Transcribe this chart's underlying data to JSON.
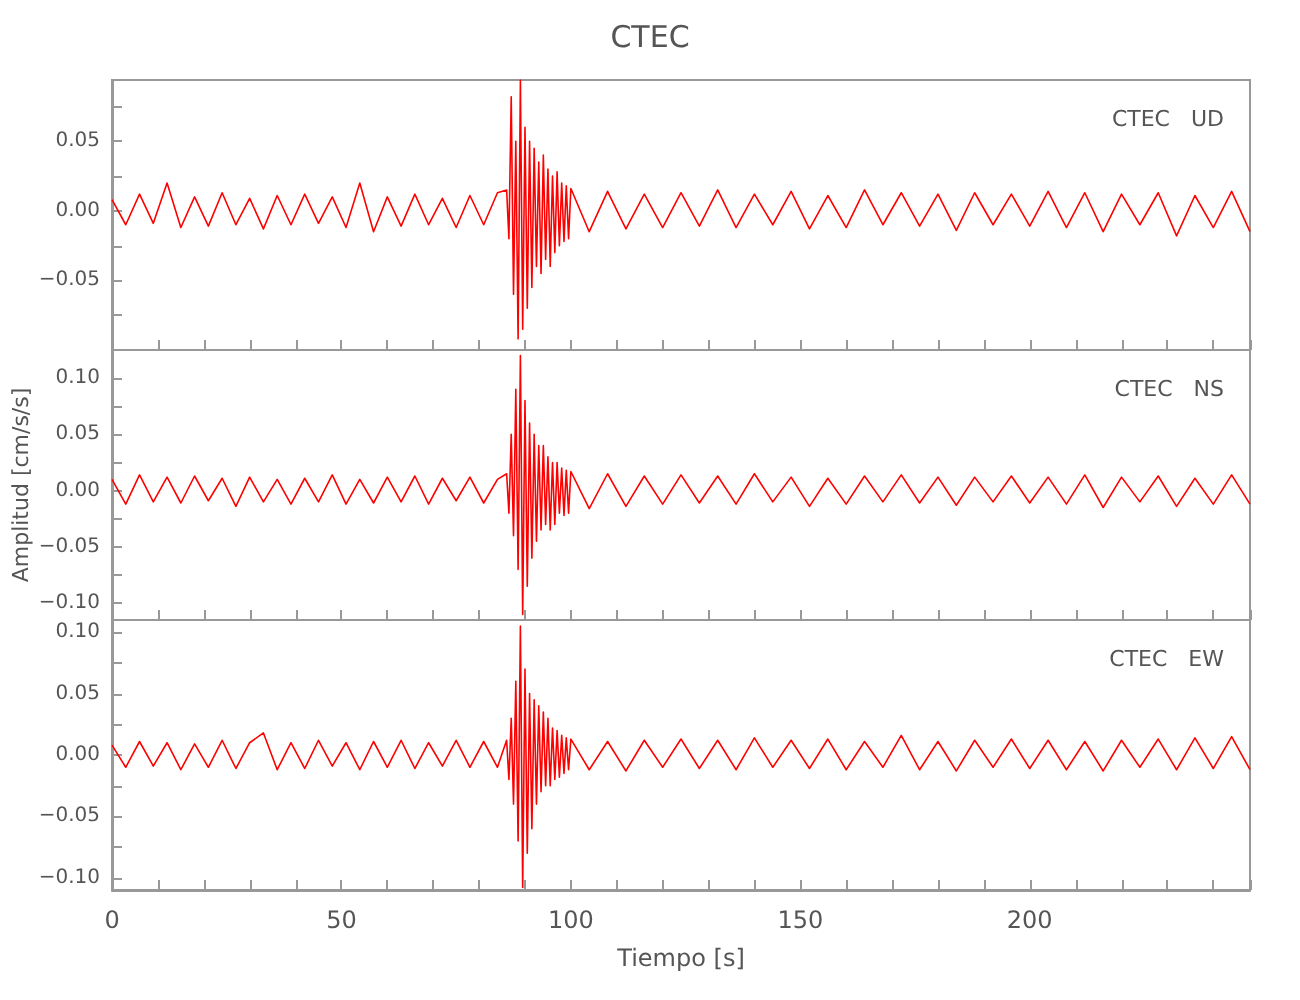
{
  "chart_data": [
    {
      "type": "line",
      "title": "CTEC",
      "annotations": [
        "CTEC   UD"
      ],
      "tick_labels": "y",
      "grid": false,
      "x": [
        0,
        3,
        6,
        9,
        12,
        15,
        18,
        21,
        24,
        27,
        30,
        33,
        36,
        39,
        42,
        45,
        48,
        51,
        54,
        57,
        60,
        63,
        66,
        69,
        72,
        75,
        78,
        81,
        84,
        86,
        86.5,
        87,
        87.5,
        88,
        88.5,
        89,
        89.5,
        90,
        90.5,
        91,
        91.5,
        92,
        92.5,
        93,
        93.5,
        94,
        94.5,
        95,
        95.5,
        96,
        96.5,
        97,
        97.5,
        98,
        98.5,
        99,
        99.5,
        100,
        104,
        108,
        112,
        116,
        120,
        124,
        128,
        132,
        136,
        140,
        144,
        148,
        152,
        156,
        160,
        164,
        168,
        172,
        176,
        180,
        184,
        188,
        192,
        196,
        200,
        204,
        208,
        212,
        216,
        220,
        224,
        228,
        232,
        236,
        240,
        244,
        248
      ],
      "xlim": [
        0,
        248
      ],
      "xticks": [
        0,
        {
          "value": 10,
          "label": null
        },
        {
          "value": 20,
          "label": null
        },
        {
          "value": 30,
          "label": null
        },
        {
          "value": 40,
          "label": null
        },
        50,
        {
          "value": 60,
          "label": null
        },
        {
          "value": 70,
          "label": null
        },
        {
          "value": 80,
          "label": null
        },
        {
          "value": 90,
          "label": null
        },
        100,
        {
          "value": 110,
          "label": null
        },
        {
          "value": 120,
          "label": null
        },
        {
          "value": 130,
          "label": null
        },
        {
          "value": 140,
          "label": null
        },
        150,
        {
          "value": 160,
          "label": null
        },
        {
          "value": 170,
          "label": null
        },
        {
          "value": 180,
          "label": null
        },
        {
          "value": 190,
          "label": null
        },
        200,
        {
          "value": 210,
          "label": null
        },
        {
          "value": 220,
          "label": null
        },
        {
          "value": 230,
          "label": null
        },
        {
          "value": 240,
          "label": null
        }
      ],
      "ylim": [
        -0.1,
        0.094
      ],
      "yticks": [
        {
          "value": -0.075,
          "label": null
        },
        {
          "value": -0.05,
          "label": "−0.05"
        },
        {
          "value": -0.025,
          "label": null
        },
        {
          "value": 0,
          "label": "0.00"
        },
        {
          "value": 0.025,
          "label": null
        },
        {
          "value": 0.05,
          "label": "0.05"
        },
        {
          "value": 0.075,
          "label": null
        }
      ],
      "series": [
        {
          "color": "#ff0000",
          "values": [
            0.008,
            -0.01,
            0.012,
            -0.009,
            0.02,
            -0.012,
            0.01,
            -0.011,
            0.013,
            -0.01,
            0.009,
            -0.013,
            0.011,
            -0.01,
            0.012,
            -0.009,
            0.01,
            -0.012,
            0.02,
            -0.015,
            0.01,
            -0.011,
            0.012,
            -0.01,
            0.009,
            -0.012,
            0.011,
            -0.01,
            0.013,
            0.015,
            -0.02,
            0.082,
            -0.06,
            0.05,
            -0.092,
            0.094,
            -0.085,
            0.06,
            -0.07,
            0.05,
            -0.055,
            0.045,
            -0.04,
            0.035,
            -0.045,
            0.04,
            -0.035,
            0.03,
            -0.04,
            0.025,
            -0.03,
            0.028,
            -0.025,
            0.02,
            -0.022,
            0.018,
            -0.02,
            0.016,
            -0.015,
            0.014,
            -0.013,
            0.012,
            -0.012,
            0.013,
            -0.011,
            0.015,
            -0.012,
            0.012,
            -0.01,
            0.014,
            -0.013,
            0.011,
            -0.012,
            0.015,
            -0.01,
            0.013,
            -0.011,
            0.012,
            -0.014,
            0.013,
            -0.01,
            0.012,
            -0.011,
            0.014,
            -0.012,
            0.013,
            -0.015,
            0.012,
            -0.01,
            0.013,
            -0.018,
            0.011,
            -0.012,
            0.014,
            -0.015
          ]
        }
      ]
    },
    {
      "type": "line",
      "ylabel": "Amplitud [cm/s/s]",
      "annotations": [
        "CTEC   NS"
      ],
      "tick_labels": "y",
      "grid": false,
      "x": [
        0,
        3,
        6,
        9,
        12,
        15,
        18,
        21,
        24,
        27,
        30,
        33,
        36,
        39,
        42,
        45,
        48,
        51,
        54,
        57,
        60,
        63,
        66,
        69,
        72,
        75,
        78,
        81,
        84,
        86,
        86.5,
        87,
        87.5,
        88,
        88.5,
        89,
        89.5,
        90,
        90.5,
        91,
        91.5,
        92,
        92.5,
        93,
        93.5,
        94,
        94.5,
        95,
        95.5,
        96,
        96.5,
        97,
        97.5,
        98,
        98.5,
        99,
        99.5,
        100,
        104,
        108,
        112,
        116,
        120,
        124,
        128,
        132,
        136,
        140,
        144,
        148,
        152,
        156,
        160,
        164,
        168,
        172,
        176,
        180,
        184,
        188,
        192,
        196,
        200,
        204,
        208,
        212,
        216,
        220,
        224,
        228,
        232,
        236,
        240,
        244,
        248
      ],
      "xlim": [
        0,
        248
      ],
      "xticks": [
        0,
        {
          "value": 10,
          "label": null
        },
        {
          "value": 20,
          "label": null
        },
        {
          "value": 30,
          "label": null
        },
        {
          "value": 40,
          "label": null
        },
        50,
        {
          "value": 60,
          "label": null
        },
        {
          "value": 70,
          "label": null
        },
        {
          "value": 80,
          "label": null
        },
        {
          "value": 90,
          "label": null
        },
        100,
        {
          "value": 110,
          "label": null
        },
        {
          "value": 120,
          "label": null
        },
        {
          "value": 130,
          "label": null
        },
        {
          "value": 140,
          "label": null
        },
        150,
        {
          "value": 160,
          "label": null
        },
        {
          "value": 170,
          "label": null
        },
        {
          "value": 180,
          "label": null
        },
        {
          "value": 190,
          "label": null
        },
        200,
        {
          "value": 210,
          "label": null
        },
        {
          "value": 220,
          "label": null
        },
        {
          "value": 230,
          "label": null
        },
        {
          "value": 240,
          "label": null
        }
      ],
      "ylim": [
        -0.115,
        0.125
      ],
      "yticks": [
        {
          "value": -0.1,
          "label": "−0.10"
        },
        {
          "value": -0.075,
          "label": null
        },
        {
          "value": -0.05,
          "label": "−0.05"
        },
        {
          "value": -0.025,
          "label": null
        },
        {
          "value": 0,
          "label": "0.00"
        },
        {
          "value": 0.025,
          "label": null
        },
        {
          "value": 0.05,
          "label": "0.05"
        },
        {
          "value": 0.075,
          "label": null
        },
        {
          "value": 0.1,
          "label": "0.10"
        }
      ],
      "series": [
        {
          "color": "#ff0000",
          "values": [
            0.01,
            -0.012,
            0.014,
            -0.01,
            0.012,
            -0.011,
            0.013,
            -0.009,
            0.011,
            -0.014,
            0.012,
            -0.01,
            0.01,
            -0.012,
            0.011,
            -0.01,
            0.014,
            -0.012,
            0.01,
            -0.011,
            0.012,
            -0.01,
            0.013,
            -0.012,
            0.011,
            -0.009,
            0.012,
            -0.011,
            0.01,
            0.015,
            -0.02,
            0.05,
            -0.04,
            0.09,
            -0.07,
            0.12,
            -0.11,
            0.08,
            -0.085,
            0.06,
            -0.06,
            0.05,
            -0.045,
            0.04,
            -0.035,
            0.04,
            -0.03,
            0.03,
            -0.035,
            0.025,
            -0.03,
            0.025,
            -0.02,
            0.02,
            -0.022,
            0.018,
            -0.02,
            0.017,
            -0.016,
            0.015,
            -0.014,
            0.013,
            -0.012,
            0.014,
            -0.011,
            0.013,
            -0.012,
            0.015,
            -0.01,
            0.012,
            -0.014,
            0.011,
            -0.012,
            0.013,
            -0.01,
            0.014,
            -0.011,
            0.012,
            -0.013,
            0.012,
            -0.01,
            0.013,
            -0.011,
            0.012,
            -0.012,
            0.014,
            -0.015,
            0.012,
            -0.01,
            0.013,
            -0.014,
            0.011,
            -0.012,
            0.014,
            -0.012
          ]
        }
      ]
    },
    {
      "type": "line",
      "xlabel": "Tiempo [s]",
      "annotations": [
        "CTEC   EW"
      ],
      "grid": false,
      "x": [
        0,
        3,
        6,
        9,
        12,
        15,
        18,
        21,
        24,
        27,
        30,
        33,
        36,
        39,
        42,
        45,
        48,
        51,
        54,
        57,
        60,
        63,
        66,
        69,
        72,
        75,
        78,
        81,
        84,
        86,
        86.5,
        87,
        87.5,
        88,
        88.5,
        89,
        89.5,
        90,
        90.5,
        91,
        91.5,
        92,
        92.5,
        93,
        93.5,
        94,
        94.5,
        95,
        95.5,
        96,
        96.5,
        97,
        97.5,
        98,
        98.5,
        99,
        99.5,
        100,
        104,
        108,
        112,
        116,
        120,
        124,
        128,
        132,
        136,
        140,
        144,
        148,
        152,
        156,
        160,
        164,
        168,
        172,
        176,
        180,
        184,
        188,
        192,
        196,
        200,
        204,
        208,
        212,
        216,
        220,
        224,
        228,
        232,
        236,
        240,
        244,
        248
      ],
      "xlim": [
        0,
        248
      ],
      "xticks": [
        0,
        {
          "value": 10,
          "label": null
        },
        {
          "value": 20,
          "label": null
        },
        {
          "value": 30,
          "label": null
        },
        {
          "value": 40,
          "label": null
        },
        50,
        {
          "value": 60,
          "label": null
        },
        {
          "value": 70,
          "label": null
        },
        {
          "value": 80,
          "label": null
        },
        {
          "value": 90,
          "label": null
        },
        100,
        {
          "value": 110,
          "label": null
        },
        {
          "value": 120,
          "label": null
        },
        {
          "value": 130,
          "label": null
        },
        {
          "value": 140,
          "label": null
        },
        150,
        {
          "value": 160,
          "label": null
        },
        {
          "value": 170,
          "label": null
        },
        {
          "value": 180,
          "label": null
        },
        {
          "value": 190,
          "label": null
        },
        200,
        {
          "value": 210,
          "label": null
        },
        {
          "value": 220,
          "label": null
        },
        {
          "value": 230,
          "label": null
        },
        {
          "value": 240,
          "label": null
        }
      ],
      "ylim": [
        -0.11,
        0.11
      ],
      "yticks": [
        {
          "value": -0.1,
          "label": "−0.10"
        },
        {
          "value": -0.075,
          "label": null
        },
        {
          "value": -0.05,
          "label": "−0.05"
        },
        {
          "value": -0.025,
          "label": null
        },
        {
          "value": 0,
          "label": "0.00"
        },
        {
          "value": 0.025,
          "label": null
        },
        {
          "value": 0.05,
          "label": "0.05"
        },
        {
          "value": 0.075,
          "label": null
        },
        {
          "value": 0.1,
          "label": "0.10"
        }
      ],
      "series": [
        {
          "color": "#ff0000",
          "values": [
            0.008,
            -0.01,
            0.011,
            -0.009,
            0.01,
            -0.012,
            0.009,
            -0.01,
            0.012,
            -0.011,
            0.01,
            0.018,
            -0.012,
            0.01,
            -0.011,
            0.012,
            -0.009,
            0.01,
            -0.012,
            0.011,
            -0.01,
            0.012,
            -0.011,
            0.01,
            -0.009,
            0.012,
            -0.01,
            0.011,
            -0.01,
            0.012,
            -0.02,
            0.03,
            -0.04,
            0.06,
            -0.07,
            0.105,
            -0.108,
            0.07,
            -0.08,
            0.05,
            -0.06,
            0.045,
            -0.04,
            0.04,
            -0.03,
            0.035,
            -0.025,
            0.03,
            -0.025,
            0.022,
            -0.02,
            0.02,
            -0.018,
            0.016,
            -0.015,
            0.014,
            -0.012,
            0.013,
            -0.012,
            0.011,
            -0.013,
            0.012,
            -0.01,
            0.013,
            -0.011,
            0.012,
            -0.012,
            0.014,
            -0.01,
            0.012,
            -0.011,
            0.013,
            -0.012,
            0.011,
            -0.01,
            0.016,
            -0.012,
            0.011,
            -0.013,
            0.012,
            -0.01,
            0.013,
            -0.011,
            0.012,
            -0.012,
            0.011,
            -0.013,
            0.012,
            -0.01,
            0.013,
            -0.012,
            0.014,
            -0.011,
            0.015,
            -0.012
          ]
        }
      ]
    }
  ]
}
